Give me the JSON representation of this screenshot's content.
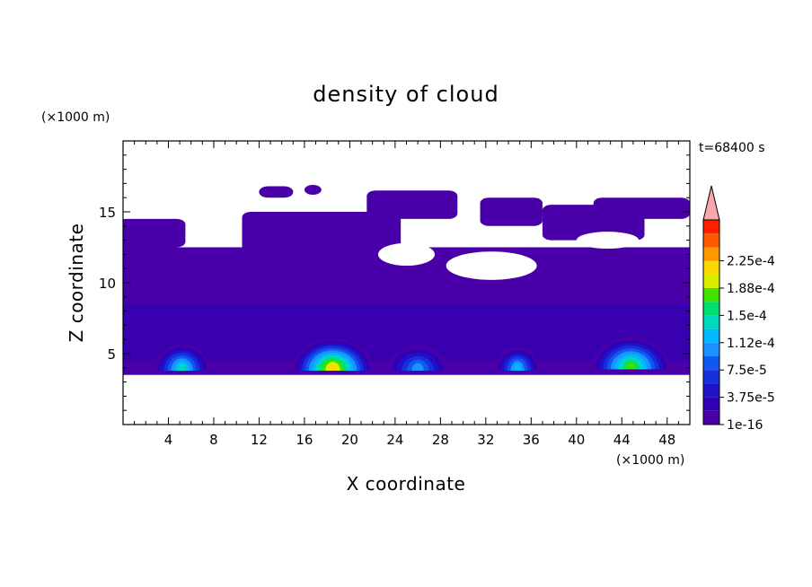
{
  "chart_data": {
    "type": "heatmap",
    "title": "density of cloud",
    "xlabel": "X coordinate",
    "ylabel": "Z coordinate",
    "x_unit": "(×1000 m)",
    "y_unit": "(×1000 m)",
    "time_label": "t=68400 s",
    "xlim": [
      0,
      50
    ],
    "ylim": [
      0,
      20
    ],
    "x_ticks": [
      "4",
      "8",
      "12",
      "16",
      "20",
      "24",
      "28",
      "32",
      "36",
      "40",
      "44",
      "48"
    ],
    "y_ticks": [
      "5",
      "10",
      "15"
    ],
    "colorbar": {
      "labels": [
        "1e-16",
        "3.75e-5",
        "7.5e-5",
        "1.12e-4",
        "1.5e-4",
        "1.88e-4",
        "2.25e-4"
      ],
      "levels": [
        1e-16,
        1.875e-05,
        3.75e-05,
        5.625e-05,
        7.5e-05,
        9.375e-05,
        0.000112,
        0.00013125,
        0.00015,
        0.00016875,
        0.000188,
        0.00020625,
        0.000225,
        0.00024375
      ],
      "colors": [
        "#4a00a8",
        "#3200b4",
        "#2010c8",
        "#1830dc",
        "#1058f0",
        "#1e90ff",
        "#00b8ff",
        "#00d8c0",
        "#00e070",
        "#40e000",
        "#d8f000",
        "#f8d800",
        "#ff9800",
        "#ff5800",
        "#ff2000",
        "#f8a8a8"
      ],
      "extend": "max"
    },
    "regions": {
      "background": {
        "level": 0,
        "color": "#4a00a8",
        "z_range": [
          3.5,
          12.5
        ]
      },
      "clear_patches": [
        {
          "x": [
            22.5,
            27.5
          ],
          "z": [
            11.2,
            12.8
          ]
        },
        {
          "x": [
            28.5,
            36.5
          ],
          "z": [
            10.2,
            12.2
          ]
        },
        {
          "x": [
            40.0,
            45.5
          ],
          "z": [
            12.4,
            13.6
          ]
        }
      ],
      "upper_layers": [
        {
          "x": [
            -0.5,
            5.5
          ],
          "z": [
            12.5,
            14.5
          ]
        },
        {
          "x": [
            10.5,
            24.5
          ],
          "z": [
            12.0,
            15.0
          ]
        },
        {
          "x": [
            13.0,
            26.0
          ],
          "z": [
            11.2,
            12.5
          ]
        },
        {
          "x": [
            21.5,
            29.5
          ],
          "z": [
            14.5,
            16.5
          ]
        },
        {
          "x": [
            31.5,
            37.0
          ],
          "z": [
            14.0,
            16.0
          ]
        },
        {
          "x": [
            37.0,
            46.0
          ],
          "z": [
            13.0,
            15.5
          ]
        },
        {
          "x": [
            41.5,
            50.0
          ],
          "z": [
            14.5,
            16.0
          ]
        },
        {
          "x": [
            12.0,
            15.0
          ],
          "z": [
            16.0,
            16.8
          ]
        },
        {
          "x": [
            16.0,
            17.5
          ],
          "z": [
            16.2,
            16.9
          ]
        }
      ],
      "convective_cells": [
        {
          "x": 5.2,
          "z": 4.4,
          "w": 5.0,
          "h": 1.6,
          "peak": 0.000112
        },
        {
          "x": 18.5,
          "z": 4.4,
          "w": 7.2,
          "h": 2.0,
          "peak": 0.000188
        },
        {
          "x": 26.0,
          "z": 4.4,
          "w": 5.5,
          "h": 1.5,
          "peak": 7.5e-05
        },
        {
          "x": 34.8,
          "z": 4.4,
          "w": 4.0,
          "h": 1.4,
          "peak": 9.375e-05
        },
        {
          "x": 44.8,
          "z": 4.5,
          "w": 7.0,
          "h": 2.0,
          "peak": 0.00015
        }
      ]
    }
  }
}
